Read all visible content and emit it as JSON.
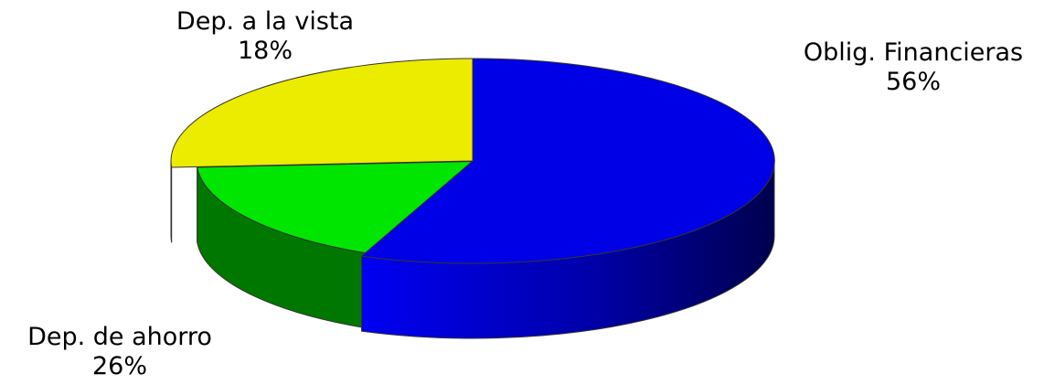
{
  "chart_data": {
    "type": "pie",
    "style": "3d-exploded",
    "slices": [
      {
        "label": "Oblig. Financieras",
        "value": 56,
        "value_label": "56%",
        "color": "#0000e6",
        "side_color": "#0000a0",
        "dark_color": "#00004e"
      },
      {
        "label": "Dep. a la vista",
        "value": 18,
        "value_label": "18%",
        "color": "#00e600",
        "side_color": "#007800",
        "dark_color": "#004d00"
      },
      {
        "label": "Dep. de ahorro",
        "value": 26,
        "value_label": "26%",
        "color": "#ecec00",
        "side_color": "#b4b400",
        "dark_color": "#8a8a00"
      }
    ]
  }
}
